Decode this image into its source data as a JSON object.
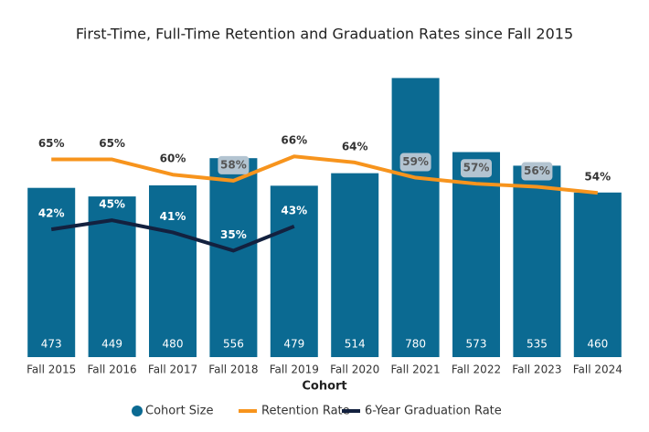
{
  "chart_data": {
    "type": "bar",
    "title": "First-Time, Full-Time Retention and Graduation Rates since Fall 2015",
    "x_label": "Cohort",
    "categories": [
      "Fall 2015",
      "Fall 2016",
      "Fall 2017",
      "Fall 2018",
      "Fall 2019",
      "Fall 2020",
      "Fall 2021",
      "Fall 2022",
      "Fall 2023",
      "Fall 2024"
    ],
    "ylim": [
      0,
      850
    ],
    "y2lim": [
      0,
      100
    ],
    "series": [
      {
        "name": "Cohort Size",
        "type": "bar",
        "color": "#0b6a92",
        "values": [
          473,
          449,
          480,
          556,
          479,
          514,
          780,
          573,
          535,
          460
        ]
      },
      {
        "name": "Retention Rate",
        "type": "line",
        "axis": "y2",
        "color": "#f7941d",
        "values": [
          65,
          65,
          60,
          58,
          66,
          64,
          59,
          57,
          56,
          54
        ],
        "value_labels": [
          "65%",
          "65%",
          "60%",
          "58%",
          "66%",
          "64%",
          "59%",
          "57%",
          "56%",
          "54%"
        ]
      },
      {
        "name": "6-Year Graduation Rate",
        "type": "line",
        "axis": "y2",
        "color": "#13213f",
        "values": [
          42,
          45,
          41,
          35,
          43,
          null,
          null,
          null,
          null,
          null
        ],
        "value_labels": [
          "42%",
          "45%",
          "41%",
          "35%",
          "43%",
          null,
          null,
          null,
          null,
          null
        ]
      }
    ]
  }
}
